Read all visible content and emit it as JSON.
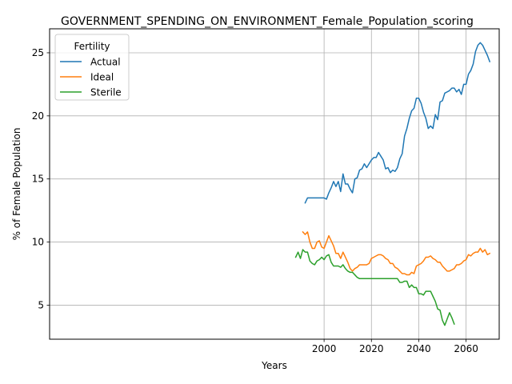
{
  "chart_data": {
    "type": "line",
    "title": "GOVERNMENT_SPENDING_ON_ENVIRONMENT_Female_Population_scoring",
    "xlabel": "Years",
    "ylabel": "% of Female Population",
    "xlim": [
      1884,
      2074
    ],
    "ylim": [
      2.3,
      26.9
    ],
    "xticks": [
      2000,
      2020,
      2040,
      2060
    ],
    "yticks": [
      5,
      10,
      15,
      20,
      25
    ],
    "grid": true,
    "legend": {
      "title": "Fertility",
      "placement": "top-left"
    },
    "series": [
      {
        "name": "Actual",
        "color": "#1f77b4",
        "x": [
          1992,
          1993,
          1994,
          1995,
          1996,
          1997,
          1998,
          1999,
          2000,
          2001,
          2002,
          2003,
          2004,
          2005,
          2006,
          2007,
          2008,
          2009,
          2010,
          2011,
          2012,
          2013,
          2014,
          2015,
          2016,
          2017,
          2018,
          2019,
          2020,
          2021,
          2022,
          2023,
          2024,
          2025,
          2026,
          2027,
          2028,
          2029,
          2030,
          2031,
          2032,
          2033,
          2034,
          2035,
          2036,
          2037,
          2038,
          2039,
          2040,
          2041,
          2042,
          2043,
          2044,
          2045,
          2046,
          2047,
          2048,
          2049,
          2050,
          2051,
          2052,
          2053,
          2054,
          2055,
          2056,
          2057,
          2058,
          2059,
          2060,
          2061,
          2062,
          2063,
          2064,
          2065,
          2066,
          2067,
          2068,
          2069,
          2070
        ],
        "values": [
          13.1,
          13.5,
          13.5,
          13.5,
          13.5,
          13.5,
          13.5,
          13.5,
          13.5,
          13.4,
          13.9,
          14.3,
          14.8,
          14.4,
          14.8,
          14.0,
          15.4,
          14.6,
          14.6,
          14.2,
          13.9,
          15.0,
          15.1,
          15.7,
          15.8,
          16.2,
          15.9,
          16.2,
          16.5,
          16.7,
          16.7,
          17.1,
          16.8,
          16.5,
          15.8,
          15.9,
          15.5,
          15.7,
          15.6,
          15.9,
          16.6,
          17.0,
          18.4,
          19.0,
          19.8,
          20.4,
          20.6,
          21.4,
          21.4,
          21.0,
          20.3,
          19.8,
          19.0,
          19.2,
          19.0,
          20.1,
          19.7,
          21.1,
          21.2,
          21.8,
          21.9,
          22.0,
          22.2,
          22.2,
          21.9,
          22.1,
          21.7,
          22.5,
          22.5,
          23.3,
          23.6,
          24.1,
          25.1,
          25.6,
          25.8,
          25.6,
          25.2,
          24.8,
          24.3
        ]
      },
      {
        "name": "Ideal",
        "color": "#ff7f0e",
        "x": [
          1991,
          1992,
          1993,
          1994,
          1995,
          1996,
          1997,
          1998,
          1999,
          2000,
          2001,
          2002,
          2003,
          2004,
          2005,
          2006,
          2007,
          2008,
          2009,
          2010,
          2011,
          2012,
          2013,
          2014,
          2015,
          2016,
          2017,
          2018,
          2019,
          2020,
          2021,
          2022,
          2023,
          2024,
          2025,
          2026,
          2027,
          2028,
          2029,
          2030,
          2031,
          2032,
          2033,
          2034,
          2035,
          2036,
          2037,
          2038,
          2039,
          2040,
          2041,
          2042,
          2043,
          2044,
          2045,
          2046,
          2047,
          2048,
          2049,
          2050,
          2051,
          2052,
          2053,
          2054,
          2055,
          2056,
          2057,
          2058,
          2059,
          2060,
          2061,
          2062,
          2063,
          2064,
          2065,
          2066,
          2067,
          2068,
          2069,
          2070
        ],
        "values": [
          10.8,
          10.6,
          10.8,
          10.0,
          9.5,
          9.5,
          10.0,
          10.1,
          9.6,
          9.5,
          10.0,
          10.5,
          10.1,
          9.7,
          9.1,
          9.1,
          8.7,
          9.2,
          8.8,
          8.4,
          7.9,
          7.7,
          7.9,
          8.0,
          8.2,
          8.2,
          8.2,
          8.2,
          8.3,
          8.7,
          8.8,
          8.9,
          9.0,
          9.0,
          8.9,
          8.7,
          8.6,
          8.3,
          8.3,
          8.0,
          7.9,
          7.7,
          7.5,
          7.5,
          7.4,
          7.4,
          7.6,
          7.5,
          8.1,
          8.2,
          8.3,
          8.5,
          8.8,
          8.8,
          8.9,
          8.7,
          8.6,
          8.4,
          8.4,
          8.1,
          7.9,
          7.7,
          7.7,
          7.8,
          7.9,
          8.2,
          8.2,
          8.3,
          8.5,
          8.6,
          9.0,
          8.9,
          9.1,
          9.2,
          9.2,
          9.5,
          9.2,
          9.4,
          9.0,
          9.1
        ]
      },
      {
        "name": "Sterile",
        "color": "#2ca02c",
        "x": [
          1988,
          1989,
          1990,
          1991,
          1992,
          1993,
          1994,
          1995,
          1996,
          1997,
          1998,
          1999,
          2000,
          2001,
          2002,
          2003,
          2004,
          2005,
          2006,
          2007,
          2008,
          2009,
          2010,
          2011,
          2012,
          2013,
          2014,
          2015,
          2016,
          2017,
          2018,
          2019,
          2020,
          2021,
          2022,
          2023,
          2024,
          2025,
          2026,
          2027,
          2028,
          2029,
          2030,
          2031,
          2032,
          2033,
          2034,
          2035,
          2036,
          2037,
          2038,
          2039,
          2040,
          2041,
          2042,
          2043,
          2044,
          2045,
          2046,
          2047,
          2048,
          2049,
          2050,
          2051,
          2052,
          2053,
          2054,
          2055
        ],
        "values": [
          8.8,
          9.2,
          8.7,
          9.4,
          9.2,
          9.2,
          8.5,
          8.3,
          8.2,
          8.5,
          8.6,
          8.8,
          8.6,
          8.9,
          9.0,
          8.4,
          8.1,
          8.1,
          8.1,
          8.0,
          8.2,
          7.9,
          7.7,
          7.6,
          7.6,
          7.4,
          7.2,
          7.1,
          7.1,
          7.1,
          7.1,
          7.1,
          7.1,
          7.1,
          7.1,
          7.1,
          7.1,
          7.1,
          7.1,
          7.1,
          7.1,
          7.1,
          7.1,
          7.1,
          6.8,
          6.8,
          6.9,
          6.9,
          6.4,
          6.6,
          6.4,
          6.4,
          5.9,
          5.9,
          5.8,
          6.1,
          6.1,
          6.1,
          5.7,
          5.3,
          4.7,
          4.6,
          3.8,
          3.4,
          3.9,
          4.4,
          4.0,
          3.5
        ]
      }
    ]
  }
}
